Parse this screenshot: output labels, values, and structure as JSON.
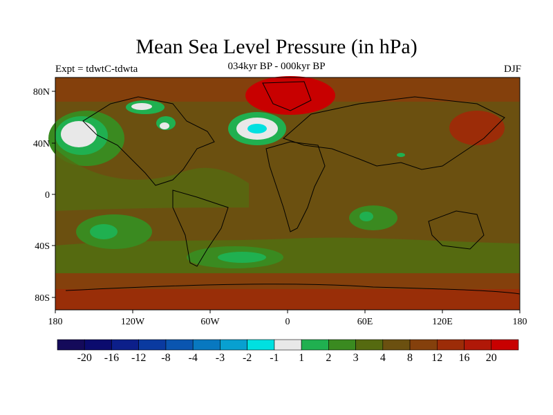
{
  "header": {
    "title": "Mean Sea Level Pressure (in hPa)",
    "subtitle": "034kyr BP - 000kyr BP",
    "experiment": "Expt = tdwtC-tdwta",
    "season": "DJF"
  },
  "map": {
    "projection": "cylindrical equidistant",
    "lat_labels": [
      "80N",
      "40N",
      "0",
      "40S",
      "80S"
    ],
    "lon_labels": [
      "180",
      "120W",
      "60W",
      "0",
      "60E",
      "120E",
      "180"
    ],
    "background_level_color": "#6b5010"
  },
  "colorbar": {
    "colors": [
      "#140a5a",
      "#0b0b6e",
      "#0c1f8a",
      "#0a3aa0",
      "#0a55b0",
      "#0878c0",
      "#08a0d0",
      "#00e0e0",
      "#e8e8e8",
      "#20b050",
      "#3a8a20",
      "#556a10",
      "#6b5010",
      "#84400c",
      "#9c2c08",
      "#b01808",
      "#c80000"
    ],
    "tick_labels": [
      "-20",
      "-16",
      "-12",
      "-8",
      "-4",
      "-3",
      "-2",
      "-1",
      "1",
      "2",
      "3",
      "4",
      "8",
      "12",
      "16",
      "20"
    ]
  }
}
